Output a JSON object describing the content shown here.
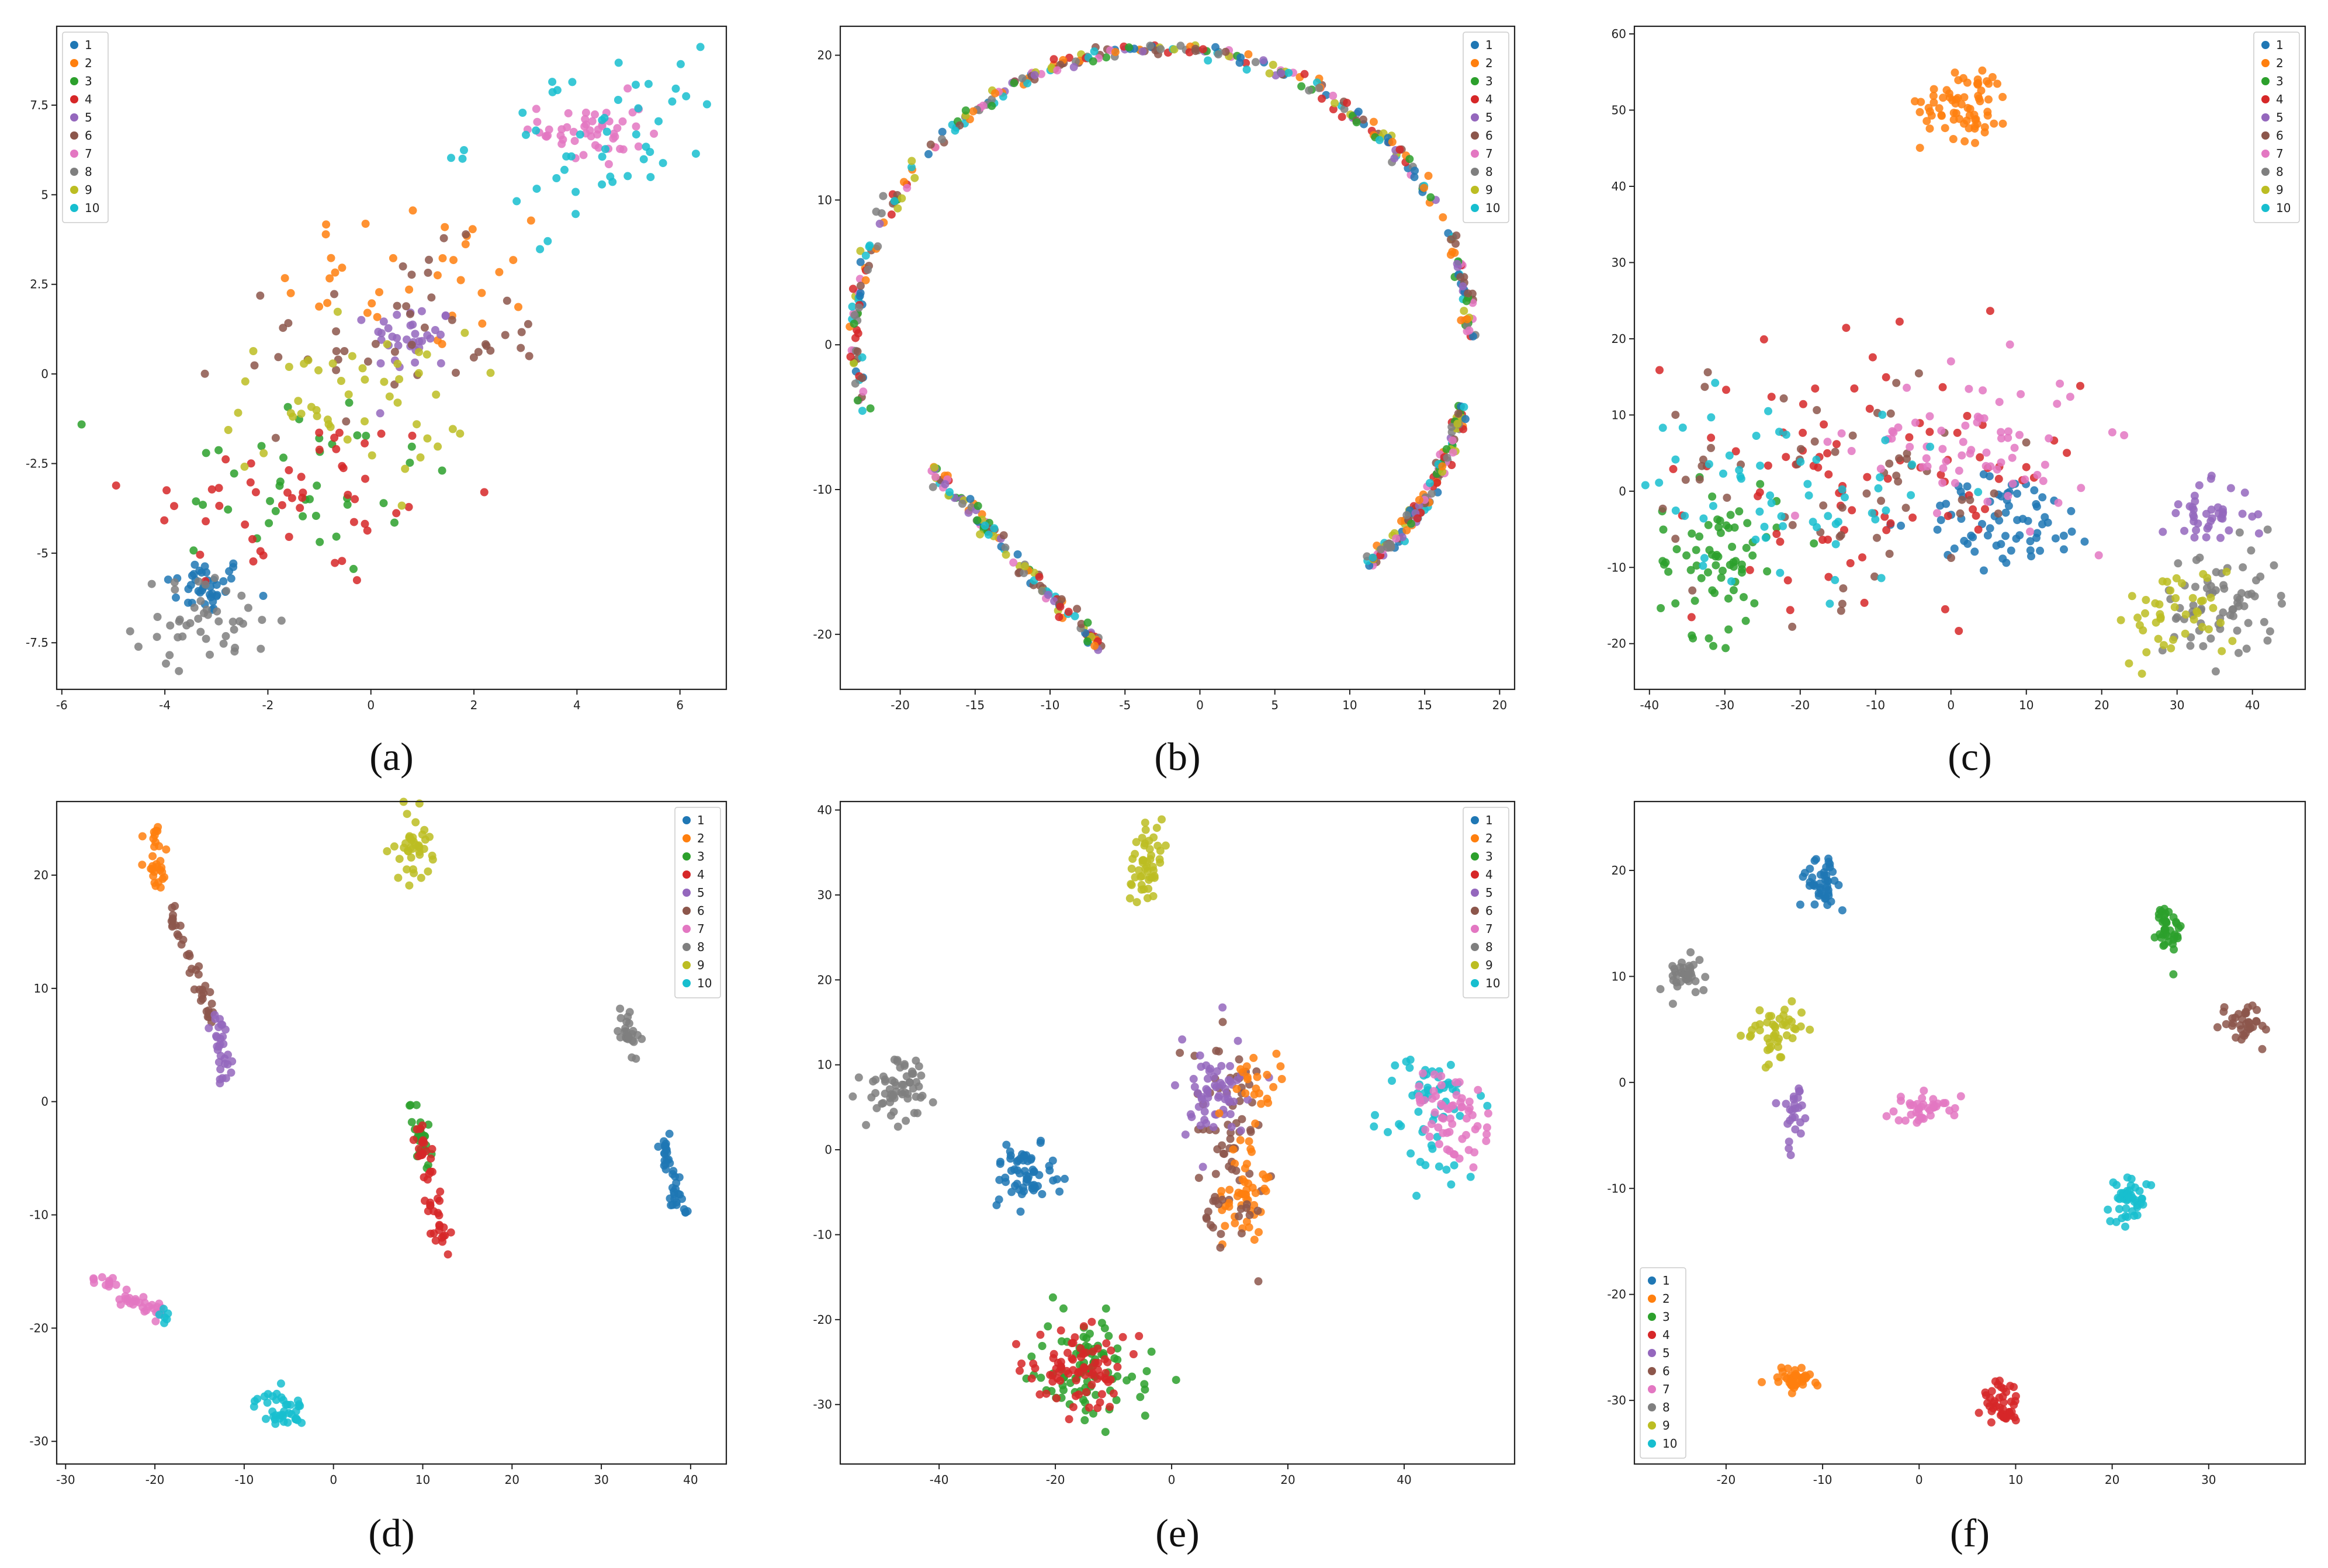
{
  "series_colors": [
    "#1f77b4",
    "#ff7f0e",
    "#2ca02c",
    "#d62728",
    "#9467bd",
    "#8c564b",
    "#e377c2",
    "#7f7f7f",
    "#bcbd22",
    "#17becf"
  ],
  "chart_data": [
    {
      "type": "scatter",
      "caption": "(a)",
      "xlim": [
        -6.1,
        6.9
      ],
      "ylim": [
        -8.8,
        9.7
      ],
      "xticks": [
        -6,
        -4,
        -2,
        0,
        2,
        4,
        6
      ],
      "yticks": [
        -7.5,
        -5.0,
        -2.5,
        0.0,
        2.5,
        5.0,
        7.5
      ],
      "legend_position": "top-left",
      "legend": [
        "1",
        "2",
        "3",
        "4",
        "5",
        "6",
        "7",
        "8",
        "9",
        "10"
      ],
      "clusters": [
        {
          "label": "1",
          "cx": -3.2,
          "cy": -5.9,
          "sx": 0.4,
          "sy": 0.4,
          "n": 40
        },
        {
          "label": "2",
          "cx": 1.0,
          "cy": 2.7,
          "sx": 1.4,
          "sy": 1.1,
          "n": 35
        },
        {
          "label": "3",
          "cx": -1.5,
          "cy": -3.0,
          "sx": 1.6,
          "sy": 1.4,
          "n": 40
        },
        {
          "label": "4",
          "cx": -1.5,
          "cy": -3.5,
          "sx": 1.6,
          "sy": 1.3,
          "n": 50
        },
        {
          "label": "5",
          "cx": 0.8,
          "cy": 1.0,
          "sx": 0.4,
          "sy": 0.5,
          "n": 35
        },
        {
          "label": "6",
          "cx": 0.5,
          "cy": 1.0,
          "sx": 1.5,
          "sy": 1.2,
          "n": 45
        },
        {
          "label": "7",
          "cx": 4.3,
          "cy": 6.8,
          "sx": 0.5,
          "sy": 0.5,
          "n": 50
        },
        {
          "label": "8",
          "cx": -3.2,
          "cy": -6.9,
          "sx": 0.7,
          "sy": 0.6,
          "n": 45
        },
        {
          "label": "9",
          "cx": -0.5,
          "cy": -0.8,
          "sx": 1.2,
          "sy": 1.0,
          "n": 50
        },
        {
          "label": "10",
          "cx": 4.5,
          "cy": 6.5,
          "sx": 1.3,
          "sy": 1.2,
          "n": 50
        }
      ]
    },
    {
      "type": "scatter",
      "caption": "(b)",
      "xlim": [
        -24,
        21
      ],
      "ylim": [
        -23.8,
        22
      ],
      "xticks": [
        -20,
        -15,
        -10,
        -5,
        0,
        5,
        10,
        15,
        20
      ],
      "yticks": [
        -20,
        -10,
        0,
        10,
        20
      ],
      "legend_position": "top-right",
      "legend": [
        "1",
        "2",
        "3",
        "4",
        "5",
        "6",
        "7",
        "8",
        "9",
        "10"
      ],
      "arcs": [
        {
          "cx": -2.5,
          "cy": 0,
          "rx": 20.5,
          "ry": 20.5,
          "a0": 90,
          "a1": 193,
          "n": 180
        },
        {
          "cx": -2.5,
          "cy": 0,
          "rx": 20.5,
          "ry": 20.5,
          "a0": 1,
          "a1": 90,
          "n": 160
        },
        {
          "cx": -2.5,
          "cy": 0,
          "rx": 20.5,
          "ry": 20.5,
          "a0": -48,
          "a1": -12,
          "n": 140
        }
      ],
      "segments": [
        {
          "x0": -18.0,
          "y0": -8.5,
          "x1": -6.5,
          "y1": -21.0,
          "n": 120
        }
      ]
    },
    {
      "type": "scatter",
      "caption": "(c)",
      "xlim": [
        -42,
        47
      ],
      "ylim": [
        -26,
        61
      ],
      "xticks": [
        -40,
        -30,
        -20,
        -10,
        0,
        10,
        20,
        30,
        40
      ],
      "yticks": [
        -20,
        -10,
        0,
        10,
        20,
        30,
        40,
        50,
        60
      ],
      "legend_position": "top-right",
      "legend": [
        "1",
        "2",
        "3",
        "4",
        "5",
        "6",
        "7",
        "8",
        "9",
        "10"
      ],
      "clusters": [
        {
          "label": "1",
          "cx": 8,
          "cy": -4,
          "sx": 6,
          "sy": 3,
          "n": 70
        },
        {
          "label": "2",
          "cx": 2,
          "cy": 51,
          "sx": 3,
          "sy": 2.5,
          "n": 70
        },
        {
          "label": "3",
          "cx": -31,
          "cy": -9,
          "sx": 4,
          "sy": 5,
          "n": 70
        },
        {
          "label": "4",
          "cx": -10,
          "cy": 3,
          "sx": 14,
          "sy": 8,
          "n": 90
        },
        {
          "label": "5",
          "cx": 34,
          "cy": -3,
          "sx": 3,
          "sy": 2,
          "n": 40
        },
        {
          "label": "6",
          "cx": -15,
          "cy": 1,
          "sx": 14,
          "sy": 8,
          "n": 60
        },
        {
          "label": "7",
          "cx": 3,
          "cy": 6,
          "sx": 8,
          "sy": 5,
          "n": 70
        },
        {
          "label": "8",
          "cx": 36,
          "cy": -15,
          "sx": 4,
          "sy": 4,
          "n": 70
        },
        {
          "label": "9",
          "cx": 30,
          "cy": -16,
          "sx": 4,
          "sy": 3,
          "n": 45
        },
        {
          "label": "10",
          "cx": -22,
          "cy": 0,
          "sx": 10,
          "sy": 6,
          "n": 60
        }
      ]
    },
    {
      "type": "scatter",
      "caption": "(d)",
      "xlim": [
        -31,
        44
      ],
      "ylim": [
        -32,
        26.5
      ],
      "xticks": [
        -30,
        -20,
        -10,
        0,
        10,
        20,
        30,
        40
      ],
      "yticks": [
        -30,
        -20,
        -10,
        0,
        10,
        20
      ],
      "legend_position": "top-right",
      "legend": [
        "1",
        "2",
        "3",
        "4",
        "5",
        "6",
        "7",
        "8",
        "9",
        "10"
      ],
      "clusters": [
        {
          "label": "9",
          "cx": 9,
          "cy": 22.5,
          "sx": 1,
          "sy": 1.6,
          "n": 40
        },
        {
          "label": "8",
          "cx": 33,
          "cy": 6.5,
          "sx": 0.6,
          "sy": 1.1,
          "n": 25
        },
        {
          "label": "10",
          "cx": -6,
          "cy": -27.2,
          "sx": 1.4,
          "sy": 0.8,
          "n": 40
        }
      ],
      "segments": [
        {
          "label": "2",
          "x0": -20.5,
          "y0": 24,
          "x1": -19,
          "y1": 19,
          "w": 0.6,
          "n": 30
        },
        {
          "label": "6",
          "x0": -18.5,
          "y0": 17,
          "x1": -13.5,
          "y1": 7,
          "w": 0.5,
          "n": 40
        },
        {
          "label": "5",
          "x0": -13.5,
          "y0": 8,
          "x1": -11.5,
          "y1": 1,
          "w": 0.5,
          "n": 30
        },
        {
          "label": "3",
          "x0": 8.8,
          "y0": 0,
          "x1": 10.5,
          "y1": -6,
          "w": 0.5,
          "n": 25
        },
        {
          "label": "4",
          "x0": 9.5,
          "y0": -2,
          "x1": 12.5,
          "y1": -14,
          "w": 0.5,
          "n": 45
        },
        {
          "label": "1",
          "x0": 36.5,
          "y0": -3,
          "x1": 39,
          "y1": -10,
          "w": 0.4,
          "n": 40
        },
        {
          "label": "7",
          "x0": -27,
          "y0": -15.2,
          "x1": -19,
          "y1": -19,
          "w": 0.5,
          "n": 45
        },
        {
          "label": "10",
          "x0": -19.5,
          "y0": -18.5,
          "x1": -18.5,
          "y1": -19.5,
          "w": 0.3,
          "n": 6
        }
      ]
    },
    {
      "type": "scatter",
      "caption": "(e)",
      "xlim": [
        -57,
        59
      ],
      "ylim": [
        -37,
        41
      ],
      "xticks": [
        -40,
        -20,
        0,
        20,
        40
      ],
      "yticks": [
        -30,
        -20,
        -10,
        0,
        10,
        20,
        30,
        40
      ],
      "legend_position": "top-right",
      "legend": [
        "1",
        "2",
        "3",
        "4",
        "5",
        "6",
        "7",
        "8",
        "9",
        "10"
      ],
      "clusters": [
        {
          "label": "9",
          "cx": -4,
          "cy": 33,
          "sx": 1.5,
          "sy": 2.3,
          "n": 50
        },
        {
          "label": "8",
          "cx": -47,
          "cy": 7,
          "sx": 2.5,
          "sy": 2.3,
          "n": 60
        },
        {
          "label": "1",
          "cx": -25,
          "cy": -3,
          "sx": 2.5,
          "sy": 2,
          "n": 60
        },
        {
          "label": "6",
          "cx": 10,
          "cy": 5,
          "sx": 4,
          "sy": 5,
          "n": 50
        },
        {
          "label": "5",
          "cx": 7,
          "cy": 7,
          "sx": 3,
          "sy": 3,
          "n": 60
        },
        {
          "label": "2",
          "cx": 12,
          "cy": -5,
          "sx": 2.5,
          "sy": 3,
          "n": 50
        },
        {
          "label": "6",
          "cx": 10,
          "cy": -7,
          "sx": 2.5,
          "sy": 3,
          "n": 25
        },
        {
          "label": "2",
          "cx": 15,
          "cy": 8,
          "sx": 2,
          "sy": 2,
          "n": 20
        },
        {
          "label": "3",
          "cx": -15,
          "cy": -26,
          "sx": 5,
          "sy": 3,
          "n": 90
        },
        {
          "label": "4",
          "cx": -16,
          "cy": -26,
          "sx": 4,
          "sy": 2.5,
          "n": 80
        },
        {
          "label": "10",
          "cx": 45,
          "cy": 5,
          "sx": 4,
          "sy": 5,
          "n": 60
        },
        {
          "label": "7",
          "cx": 48,
          "cy": 4,
          "sx": 3,
          "sy": 2.5,
          "n": 60
        }
      ]
    },
    {
      "type": "scatter",
      "caption": "(f)",
      "xlim": [
        -29.5,
        40
      ],
      "ylim": [
        -36,
        26.5
      ],
      "xticks": [
        -20,
        -10,
        0,
        10,
        20,
        30
      ],
      "yticks": [
        -30,
        -20,
        -10,
        0,
        10,
        20
      ],
      "legend_position": "bottom-left",
      "legend": [
        "1",
        "2",
        "3",
        "4",
        "5",
        "6",
        "7",
        "8",
        "9",
        "10"
      ],
      "clusters": [
        {
          "label": "1",
          "cx": -10,
          "cy": 18.8,
          "sx": 1,
          "sy": 1.3,
          "n": 45
        },
        {
          "label": "3",
          "cx": 25.8,
          "cy": 14.5,
          "sx": 0.6,
          "sy": 1.5,
          "n": 40
        },
        {
          "label": "8",
          "cx": -24.5,
          "cy": 10,
          "sx": 1,
          "sy": 1,
          "n": 35
        },
        {
          "label": "6",
          "cx": 34,
          "cy": 5.5,
          "sx": 1.1,
          "sy": 1,
          "n": 35
        },
        {
          "label": "9",
          "cx": -14.5,
          "cy": 4.5,
          "sx": 1.4,
          "sy": 1.3,
          "n": 45
        },
        {
          "label": "5",
          "cx": -13,
          "cy": -3,
          "sx": 0.6,
          "sy": 1.5,
          "n": 25
        },
        {
          "label": "7",
          "cx": 0.5,
          "cy": -2.5,
          "sx": 1.6,
          "sy": 0.6,
          "n": 40
        },
        {
          "label": "10",
          "cx": 22,
          "cy": -11,
          "sx": 1,
          "sy": 1,
          "n": 45
        },
        {
          "label": "2",
          "cx": -13,
          "cy": -28,
          "sx": 1,
          "sy": 0.7,
          "n": 40
        },
        {
          "label": "4",
          "cx": 8.5,
          "cy": -30.5,
          "sx": 1,
          "sy": 1.1,
          "n": 45
        }
      ]
    }
  ]
}
